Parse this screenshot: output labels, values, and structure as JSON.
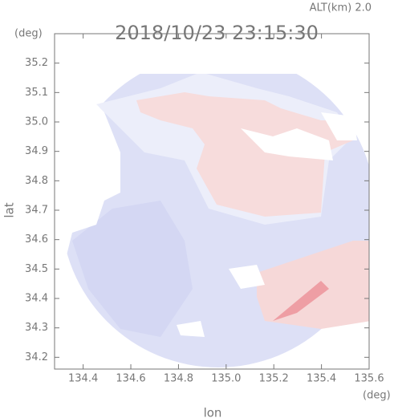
{
  "chart_data": {
    "type": "map",
    "title": "2018/10/23 23:15:30",
    "annotations": [
      "ALT(km) 2.0",
      "(deg)",
      "(deg)"
    ],
    "xlabel": "lon",
    "ylabel": "lat",
    "xlim": [
      134.28,
      135.6
    ],
    "ylim": [
      34.16,
      35.3
    ],
    "xticks": [
      134.4,
      134.6,
      134.8,
      {
        "value": 135,
        "label": "135.0"
      },
      135.2,
      135.4,
      135.6
    ],
    "yticks": [
      {
        "value": 34.2,
        "label": "34.2"
      },
      34.3,
      34.4,
      34.5,
      34.6,
      34.7,
      34.8,
      34.9,
      {
        "value": 35,
        "label": "35.0"
      },
      35.1,
      35.2
    ]
  }
}
